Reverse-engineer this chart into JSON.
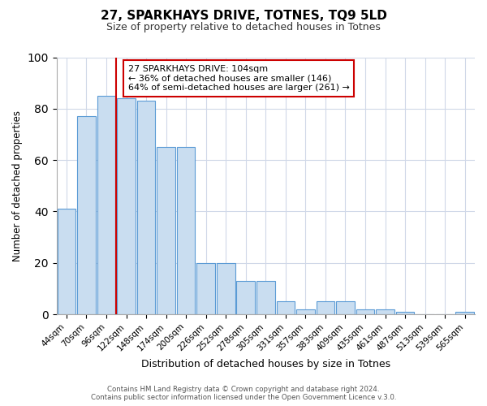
{
  "title": "27, SPARKHAYS DRIVE, TOTNES, TQ9 5LD",
  "subtitle": "Size of property relative to detached houses in Totnes",
  "xlabel": "Distribution of detached houses by size in Totnes",
  "ylabel": "Number of detached properties",
  "bar_labels": [
    "44sqm",
    "70sqm",
    "96sqm",
    "122sqm",
    "148sqm",
    "174sqm",
    "200sqm",
    "226sqm",
    "252sqm",
    "278sqm",
    "305sqm",
    "331sqm",
    "357sqm",
    "383sqm",
    "409sqm",
    "435sqm",
    "461sqm",
    "487sqm",
    "513sqm",
    "539sqm",
    "565sqm"
  ],
  "bar_values": [
    41,
    77,
    85,
    84,
    83,
    65,
    65,
    20,
    20,
    13,
    13,
    5,
    2,
    5,
    5,
    2,
    2,
    1,
    0,
    0,
    1
  ],
  "bar_color": "#c9ddf0",
  "bar_edge_color": "#5b9bd5",
  "vline_x": 2.5,
  "vline_color": "#cc0000",
  "annotation_title": "27 SPARKHAYS DRIVE: 104sqm",
  "annotation_line1": "← 36% of detached houses are smaller (146)",
  "annotation_line2": "64% of semi-detached houses are larger (261) →",
  "annotation_box_facecolor": "#ffffff",
  "annotation_box_edgecolor": "#cc0000",
  "ylim": [
    0,
    100
  ],
  "footer1": "Contains HM Land Registry data © Crown copyright and database right 2024.",
  "footer2": "Contains public sector information licensed under the Open Government Licence v.3.0.",
  "background_color": "#ffffff",
  "plot_background": "#ffffff",
  "grid_color": "#d0d8e8"
}
